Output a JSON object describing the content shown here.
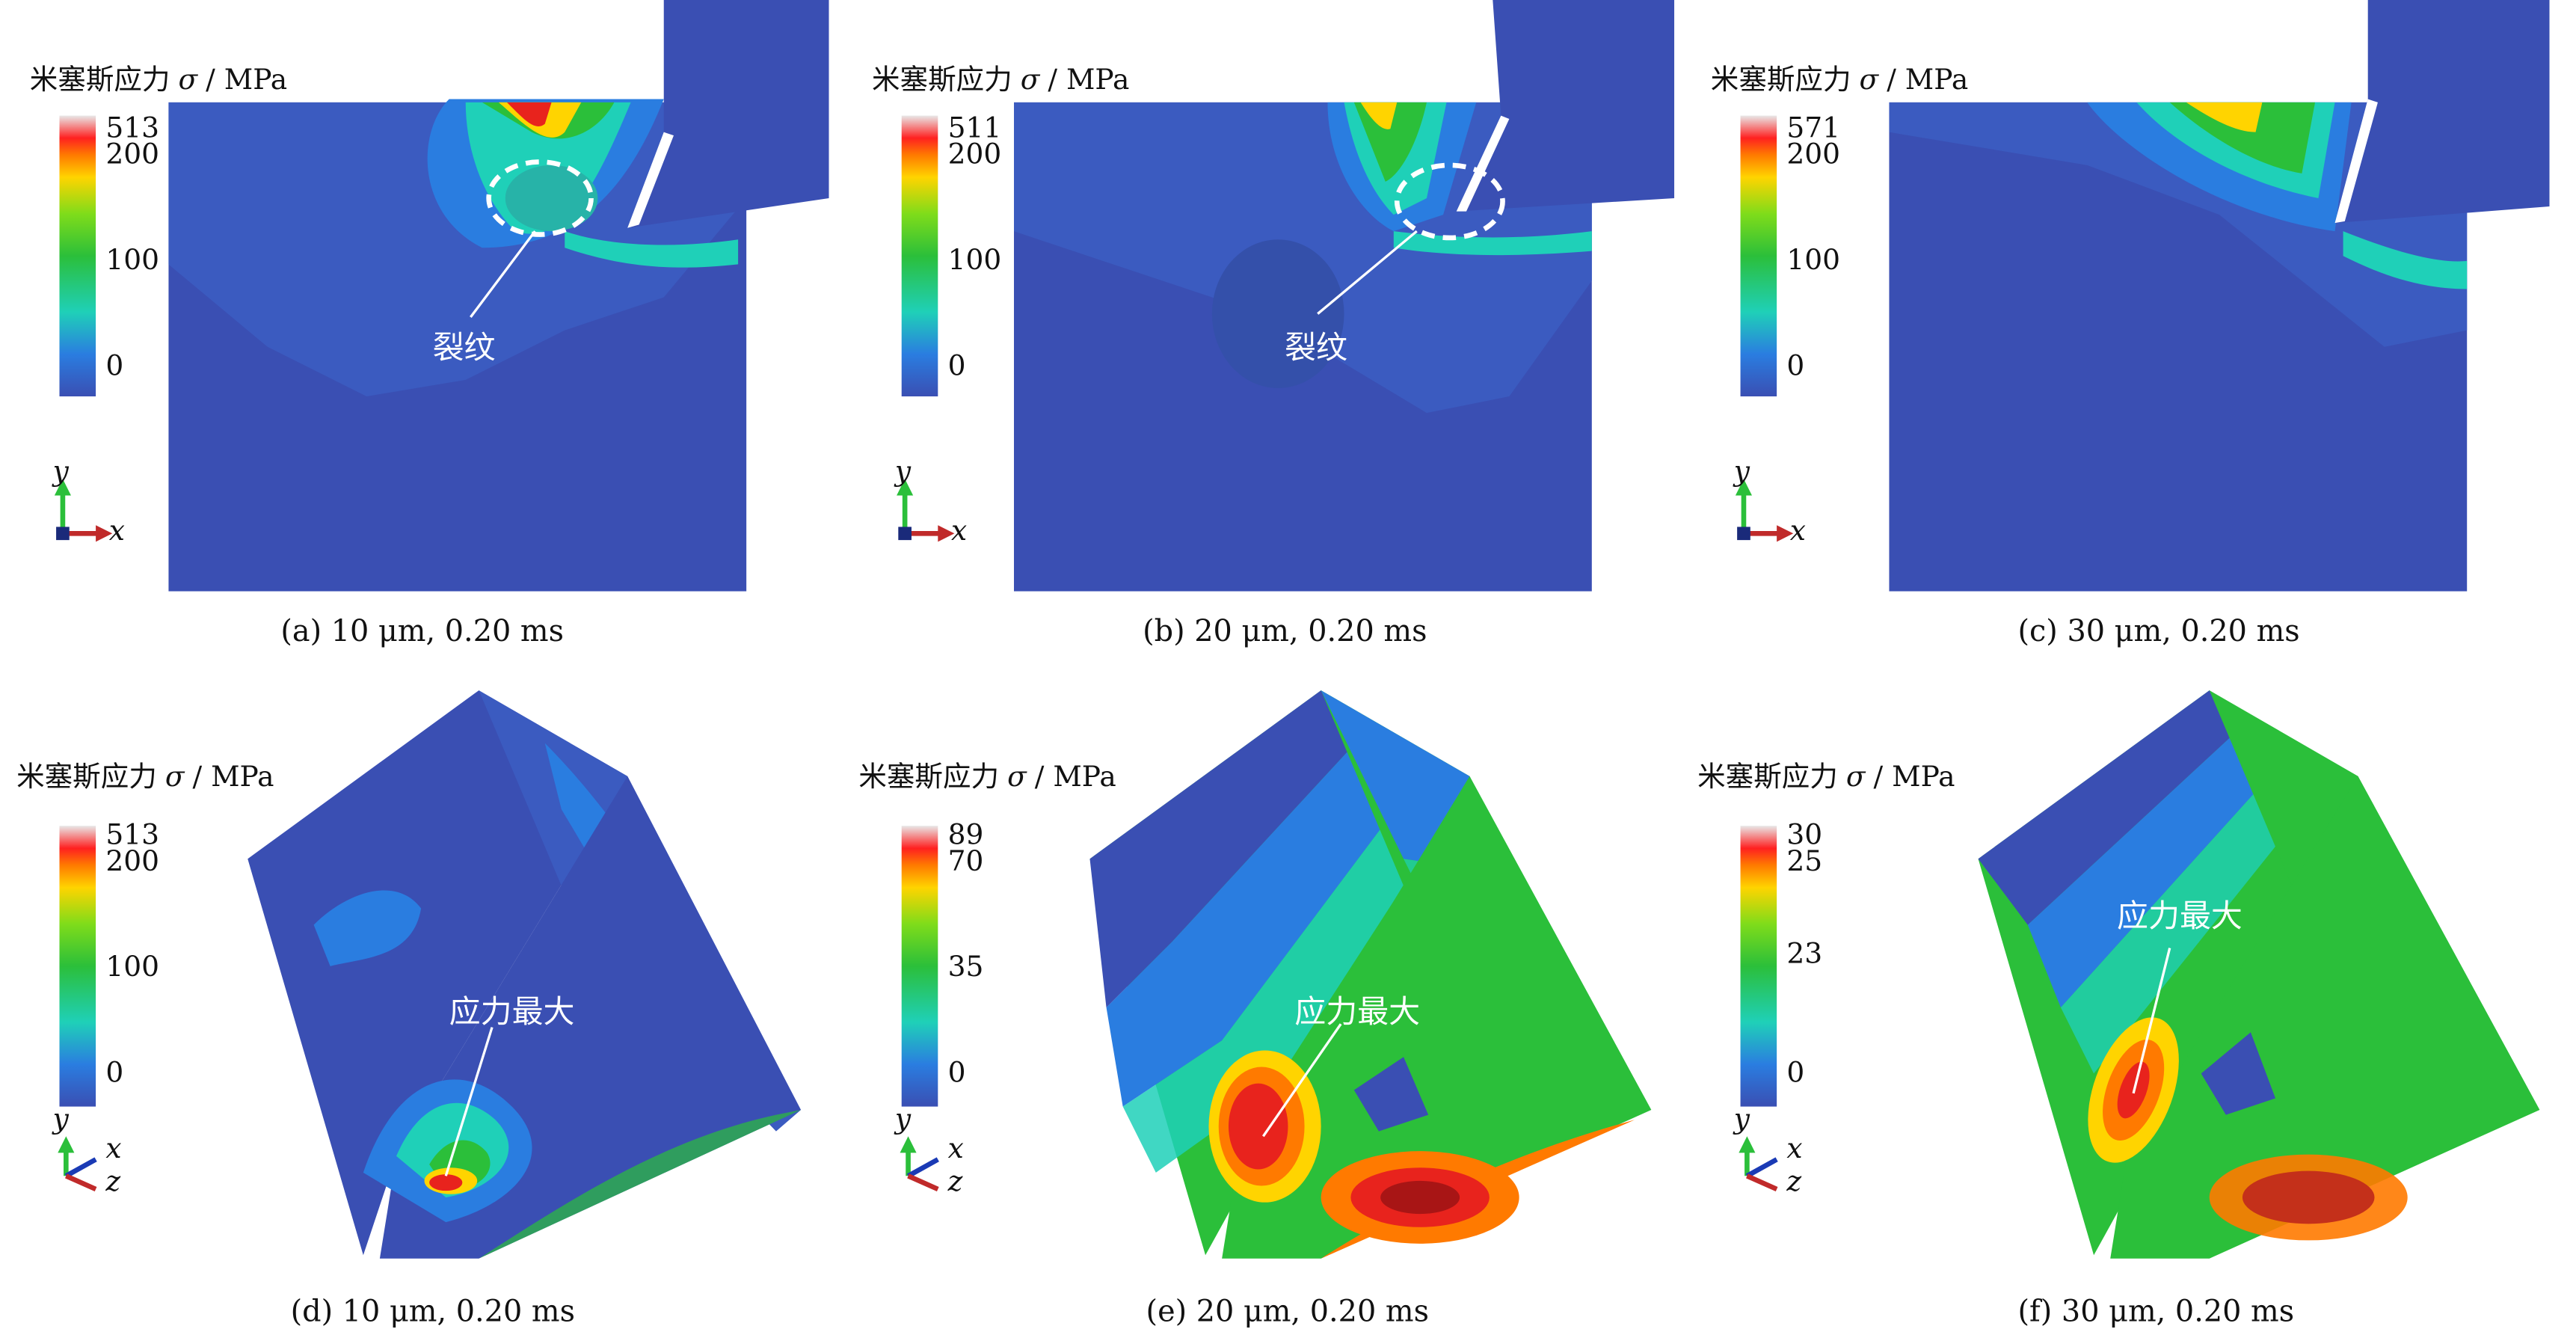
{
  "legend_title": "米塞斯应力",
  "legend_symbol": "σ",
  "legend_unit": "/ MPa",
  "panels": [
    {
      "caption": "(a) 10 μm, 0.20 ms",
      "ticks": [
        "513",
        "200",
        "100",
        "0"
      ],
      "annotation": "裂纹"
    },
    {
      "caption": "(b) 20 μm, 0.20 ms",
      "ticks": [
        "511",
        "200",
        "100",
        "0"
      ],
      "annotation": "裂纹"
    },
    {
      "caption": "(c) 30 μm, 0.20 ms",
      "ticks": [
        "571",
        "200",
        "100",
        "0"
      ]
    },
    {
      "caption": "(d) 10 μm, 0.20 ms",
      "ticks": [
        "513",
        "200",
        "100",
        "0"
      ],
      "annotation": "应力最大"
    },
    {
      "caption": "(e) 20 μm, 0.20 ms",
      "ticks": [
        "89",
        "70",
        "35",
        "0"
      ],
      "annotation": "应力最大"
    },
    {
      "caption": "(f) 30 μm, 0.20 ms",
      "ticks": [
        "30",
        "25",
        "23",
        "0"
      ],
      "annotation": "应力最大"
    }
  ],
  "axes_2d": {
    "y": "y",
    "x": "x"
  },
  "axes_3d": {
    "y": "y",
    "x": "x",
    "z": "z"
  },
  "colors": {
    "blue": "#3a4fb3",
    "green": "#2bbf3a",
    "red": "#e8231d",
    "yellow": "#ffd400",
    "cyan": "#1fd0b8"
  }
}
